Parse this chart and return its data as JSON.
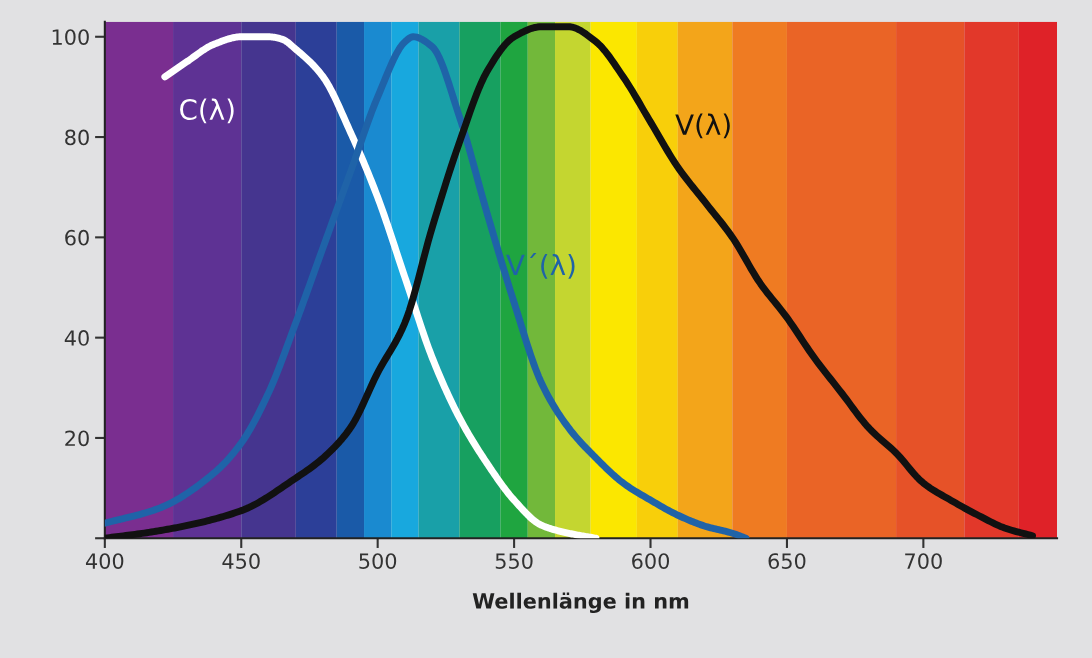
{
  "chart_data": {
    "type": "line",
    "xlabel": "Wellenlänge in nm",
    "xlim": [
      400,
      749
    ],
    "xticks": [
      400,
      450,
      500,
      550,
      600,
      650,
      700
    ],
    "ylim": [
      0,
      103
    ],
    "yticks": [
      {
        "value": 0,
        "label": null
      },
      20,
      40,
      60,
      80,
      100
    ],
    "grid": false,
    "legend": false,
    "line_style": "solid",
    "bands": [
      {
        "axis": "x",
        "from": 400,
        "to": 425,
        "color": "#7a2e90"
      },
      {
        "axis": "x",
        "from": 425,
        "to": 450,
        "color": "#5e3294"
      },
      {
        "axis": "x",
        "from": 450,
        "to": 470,
        "color": "#45358f"
      },
      {
        "axis": "x",
        "from": 470,
        "to": 485,
        "color": "#2c3f98"
      },
      {
        "axis": "x",
        "from": 485,
        "to": 495,
        "color": "#1a5aa8"
      },
      {
        "axis": "x",
        "from": 495,
        "to": 505,
        "color": "#1a8ad0"
      },
      {
        "axis": "x",
        "from": 505,
        "to": 515,
        "color": "#18a8de"
      },
      {
        "axis": "x",
        "from": 515,
        "to": 530,
        "color": "#19a0a8"
      },
      {
        "axis": "x",
        "from": 530,
        "to": 545,
        "color": "#17a060"
      },
      {
        "axis": "x",
        "from": 545,
        "to": 555,
        "color": "#1fa540"
      },
      {
        "axis": "x",
        "from": 555,
        "to": 565,
        "color": "#72b83a"
      },
      {
        "axis": "x",
        "from": 565,
        "to": 578,
        "color": "#c4d630"
      },
      {
        "axis": "x",
        "from": 578,
        "to": 595,
        "color": "#fbe700"
      },
      {
        "axis": "x",
        "from": 595,
        "to": 610,
        "color": "#f8cf0a"
      },
      {
        "axis": "x",
        "from": 610,
        "to": 630,
        "color": "#f3a51a"
      },
      {
        "axis": "x",
        "from": 630,
        "to": 650,
        "color": "#ef7b22"
      },
      {
        "axis": "x",
        "from": 650,
        "to": 690,
        "color": "#ea6426"
      },
      {
        "axis": "x",
        "from": 690,
        "to": 715,
        "color": "#e65228"
      },
      {
        "axis": "x",
        "from": 715,
        "to": 735,
        "color": "#e2382a"
      },
      {
        "axis": "x",
        "from": 735,
        "to": 749,
        "color": "#df2228"
      }
    ],
    "series": [
      {
        "name": "C(λ)",
        "color": "#ffffff",
        "x": [
          422,
          430,
          440,
          450,
          460,
          465,
          470,
          480,
          490,
          500,
          510,
          520,
          530,
          540,
          550,
          560,
          570,
          580
        ],
        "values": [
          92,
          95,
          98.5,
          100,
          100,
          99.5,
          97.5,
          92,
          81,
          68,
          52,
          36,
          24,
          15,
          7.6,
          2.6,
          1,
          0
        ]
      },
      {
        "name": "V´(λ)",
        "color": "#1f63a8",
        "x": [
          400,
          420,
          440,
          450,
          460,
          470,
          480,
          490,
          500,
          510,
          513,
          520,
          530,
          540,
          550,
          560,
          570,
          580,
          590,
          600,
          610,
          620,
          630,
          635
        ],
        "values": [
          3,
          6,
          13,
          19,
          29,
          43,
          58,
          73,
          88,
          99,
          100,
          98,
          84,
          65,
          47,
          31,
          22,
          16,
          11,
          7.6,
          4.6,
          2.4,
          1,
          0
        ]
      },
      {
        "name": "V(λ)",
        "color": "#111111",
        "x": [
          400,
          420,
          450,
          470,
          480,
          490,
          500,
          510,
          520,
          530,
          540,
          550,
          560,
          570,
          580,
          590,
          600,
          610,
          620,
          630,
          640,
          650,
          660,
          670,
          680,
          690,
          700,
          710,
          720,
          730,
          740
        ],
        "values": [
          0,
          1.5,
          5.5,
          12,
          16,
          22,
          33,
          43,
          62,
          79,
          93,
          100,
          102,
          102,
          99,
          92,
          83,
          74,
          67,
          60,
          51,
          44,
          36,
          29,
          22,
          17,
          11,
          7.6,
          4.6,
          2,
          0.5
        ]
      }
    ]
  }
}
